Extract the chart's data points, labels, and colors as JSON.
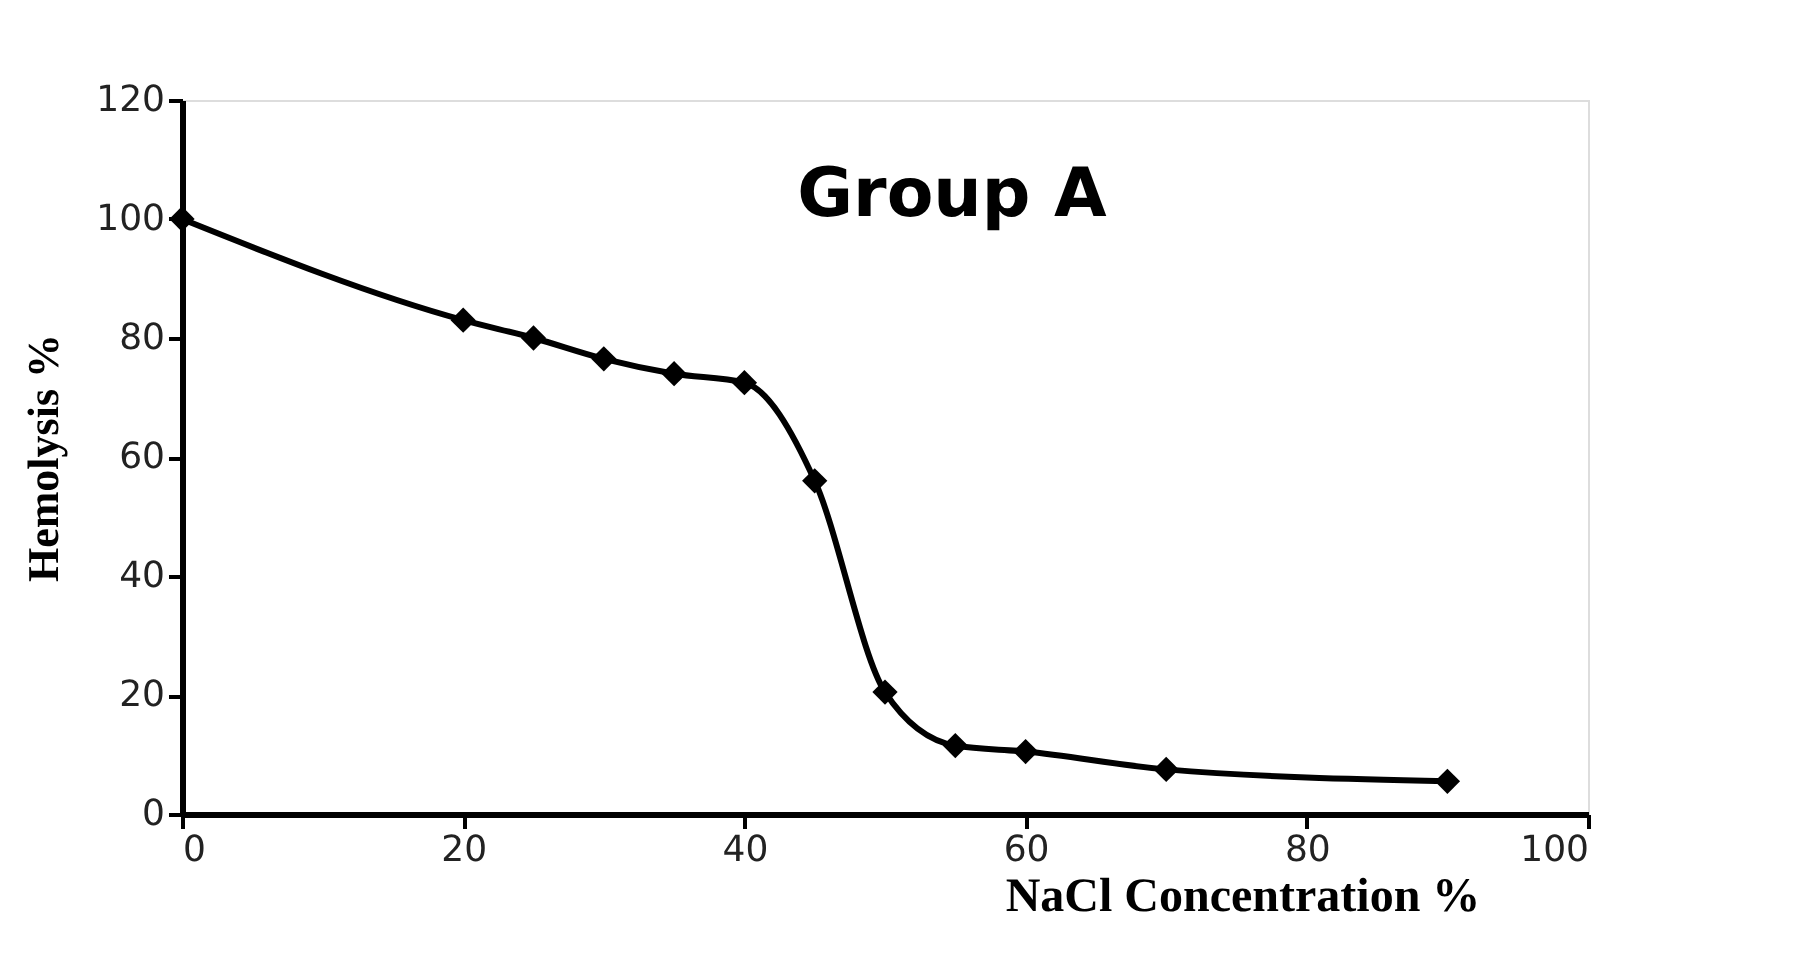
{
  "chart_data": {
    "type": "line",
    "title": "Group A",
    "xlabel": "NaCl    Concentration %",
    "ylabel": "Hemolysis %",
    "x": [
      0,
      20,
      25,
      30,
      35,
      40,
      45,
      50,
      55,
      60,
      70,
      90
    ],
    "series": [
      {
        "color": "#000000",
        "values": [
          100,
          83,
          80,
          76.5,
          74,
          72.5,
          56,
          20.5,
          11.5,
          10.5,
          7.5,
          5.5
        ]
      }
    ],
    "xlim": [
      0,
      100
    ],
    "xticks": [
      0,
      20,
      40,
      60,
      80,
      100
    ],
    "ylim": [
      0,
      120
    ],
    "yticks": [
      0,
      20,
      40,
      60,
      80,
      100,
      120
    ],
    "grid": false,
    "marker": "diamond",
    "line_style": "solid"
  }
}
